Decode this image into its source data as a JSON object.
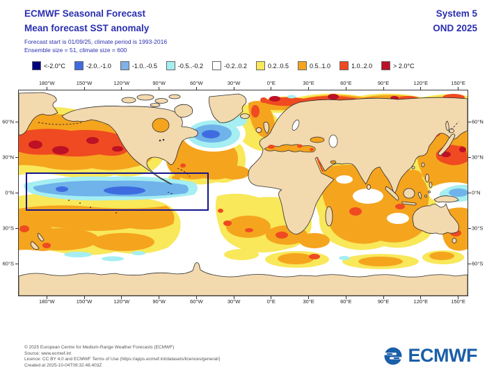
{
  "header": {
    "title_line1": "ECMWF Seasonal Forecast",
    "title_line2": "Mean forecast SST anomaly",
    "subtitle_line1": "Forecast start is 01/09/25, climate period is 1993-2016",
    "subtitle_line2": "Ensemble size = 51, climate size = 600",
    "system": "System 5",
    "season": "OND 2025",
    "text_color": "#2A2FAF"
  },
  "legend": {
    "units": "°C",
    "items": [
      {
        "label": "<-2.0°C",
        "color": "#000080"
      },
      {
        "label": "-2.0..-1.0",
        "color": "#3E6CE0"
      },
      {
        "label": "-1.0..-0.5",
        "color": "#7EB2E8"
      },
      {
        "label": "-0.5..-0.2",
        "color": "#A5EEF2"
      },
      {
        "label": "-0.2..0.2",
        "color": "#FFFFFF"
      },
      {
        "label": "0.2..0.5",
        "color": "#F8E85A"
      },
      {
        "label": "0.5..1.0",
        "color": "#F5A41E"
      },
      {
        "label": "1.0..2.0",
        "color": "#EF4A21"
      },
      {
        "label": "> 2.0°C",
        "color": "#BD1126"
      }
    ]
  },
  "map": {
    "lon_ticks": [
      {
        "label": "180°W",
        "lon": -180
      },
      {
        "label": "150°W",
        "lon": -150
      },
      {
        "label": "120°W",
        "lon": -120
      },
      {
        "label": "90°W",
        "lon": -90
      },
      {
        "label": "60°W",
        "lon": -60
      },
      {
        "label": "30°W",
        "lon": -30
      },
      {
        "label": "0°E",
        "lon": 0
      },
      {
        "label": "30°E",
        "lon": 30
      },
      {
        "label": "60°E",
        "lon": 60
      },
      {
        "label": "90°E",
        "lon": 90
      },
      {
        "label": "120°E",
        "lon": 120
      },
      {
        "label": "150°E",
        "lon": 150
      }
    ],
    "lat_ticks": [
      {
        "label": "60°N",
        "lat": 60
      },
      {
        "label": "30°N",
        "lat": 30
      },
      {
        "label": "0°N",
        "lat": 0
      },
      {
        "label": "30°S",
        "lat": -30
      },
      {
        "label": "60°S",
        "lat": -60
      }
    ],
    "annotation_box": {
      "description": "Equatorial Pacific (Niño) highlight box",
      "lon_west": 165,
      "lon_east": -50,
      "lat_north": 16,
      "lat_south": -15,
      "color": "#14148C"
    }
  },
  "chart_data": {
    "type": "heatmap",
    "title": "Mean forecast SST anomaly",
    "units": "°C",
    "bins": [
      "<-2.0",
      "-2.0..-1.0",
      "-1.0..-0.5",
      "-0.5..-0.2",
      "-0.2..0.2",
      "0.2..0.5",
      "0.5..1.0",
      "1.0..2.0",
      ">2.0"
    ],
    "bin_colors": [
      "#000080",
      "#3E6CE0",
      "#7EB2E8",
      "#A5EEF2",
      "#FFFFFF",
      "#F8E85A",
      "#F5A41E",
      "#EF4A21",
      "#BD1126"
    ],
    "projection": "equirectangular world map, lon 157.5°E eastward to 157.5°E, lat ~87°N to ~87°S",
    "notable_features": [
      "Cold La Niña-like tongue (-0.5 to -2.0°C) along equatorial Pacific, enclosed by dark-blue highlight box",
      "Strong warm band (1.0..2.0°C with >2.0°C cores) across North Pacific 30-45°N",
      "Warm anomalies >1.0°C east of Japan and in Arctic seas north of Eurasia",
      "Cold blob (-0.5..-2.0°C) in North Atlantic south of Greenland",
      "Widespread 0.2..1.0°C warm anomalies in Indian Ocean, South Pacific and South Atlantic",
      "Near-neutral (-0.2..0.2°C) Southern Ocean"
    ]
  },
  "footer": {
    "line1": "© 2025 European Centre for Medium-Range Weather Forecasts (ECMWF)",
    "line2": "Source: www.ecmwf.int",
    "line3": "Licence: CC BY 4.0 and ECMWF Terms of Use (https://apps.ecmwf.int/datasets/licences/general/)",
    "line4": "Created at 2025-10-04T09:32:48.403Z",
    "logo_text": "ECMWF",
    "logo_color": "#1A5EA8"
  }
}
